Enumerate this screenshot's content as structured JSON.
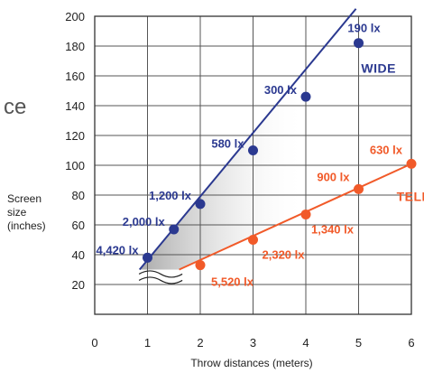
{
  "chart_data": {
    "type": "line",
    "title": "",
    "xlabel": "Throw distances (meters)",
    "ylabel_lines": [
      "Screen",
      "size",
      "(inches)"
    ],
    "xlim": [
      0,
      6
    ],
    "ylim": [
      0,
      200
    ],
    "x_ticks": [
      "0",
      "1",
      "2",
      "3",
      "4",
      "5",
      "6"
    ],
    "y_ticks": [
      "20",
      "40",
      "60",
      "80",
      "100",
      "120",
      "140",
      "160",
      "180",
      "200"
    ],
    "grid": true,
    "colors": {
      "wide": "#2b3990",
      "tele": "#f15a29",
      "frame": "#333333",
      "shade": "#c8c8c8"
    },
    "series": [
      {
        "name": "WIDE",
        "line": {
          "x": [
            0.85,
            4.95
          ],
          "y": [
            30,
            205
          ]
        },
        "points": [
          {
            "x": 1.0,
            "y": 38,
            "label": "4,420 lx"
          },
          {
            "x": 1.5,
            "y": 57,
            "label": "2,000 lx"
          },
          {
            "x": 2.0,
            "y": 74,
            "label": "1,200 lx"
          },
          {
            "x": 3.0,
            "y": 110,
            "label": "580 lx"
          },
          {
            "x": 4.0,
            "y": 146,
            "label": "300 lx"
          },
          {
            "x": 5.0,
            "y": 182,
            "label": "190 lx"
          }
        ]
      },
      {
        "name": "TELE",
        "line": {
          "x": [
            1.6,
            6.0
          ],
          "y": [
            30,
            101
          ]
        },
        "points": [
          {
            "x": 2.0,
            "y": 33,
            "label": "5,520 lx"
          },
          {
            "x": 3.0,
            "y": 50,
            "label": "2,320 lx"
          },
          {
            "x": 4.0,
            "y": 67,
            "label": "1,340 lx"
          },
          {
            "x": 5.0,
            "y": 84,
            "label": "900 lx"
          },
          {
            "x": 6.0,
            "y": 101,
            "label": "630 lx"
          }
        ]
      }
    ]
  },
  "stray_text": "ce"
}
